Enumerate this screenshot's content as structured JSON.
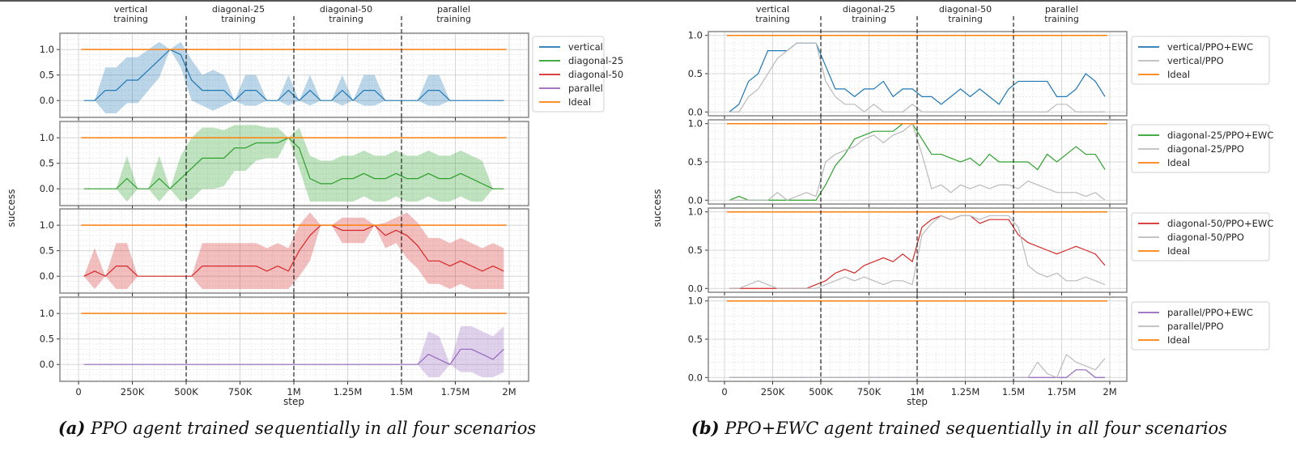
{
  "captions": {
    "a_tag": "(a)",
    "a_text": "PPO agent trained sequentially in all four scenarios",
    "b_tag": "(b)",
    "b_text": "PPO+EWC agent trained sequentially in all four scenarios"
  },
  "chart_data": [
    {
      "type": "line",
      "id": "a",
      "ylabel": "success",
      "xlabel": "step",
      "xlim": [
        -50000,
        2050000
      ],
      "ylim": [
        -0.33,
        1.32
      ],
      "xticks": [
        0,
        250000,
        500000,
        750000,
        1000000,
        1250000,
        1500000,
        1750000,
        2000000
      ],
      "xtick_labels": [
        "0",
        "250K",
        "500K",
        "750K",
        "1M",
        "1.25M",
        "1.5M",
        "1.75M",
        "2M"
      ],
      "yticks": [
        0.0,
        0.5,
        1.0
      ],
      "ytick_labels": [
        "0.0",
        "0.5",
        "1.0"
      ],
      "grid": true,
      "phase_boundaries": [
        500000,
        1000000,
        1500000
      ],
      "phase_labels": [
        [
          "vertical",
          "training"
        ],
        [
          "diagonal-25",
          "training"
        ],
        [
          "diagonal-50",
          "training"
        ],
        [
          "parallel",
          "training"
        ]
      ],
      "x_start": 25000,
      "x_step": 50000,
      "ideal": {
        "name": "Ideal",
        "value": 1.0,
        "color": "#ff7f0e"
      },
      "legend": {
        "placement": "right of top panel",
        "entries": [
          "vertical",
          "diagonal-25",
          "diagonal-50",
          "parallel",
          "Ideal"
        ]
      },
      "panels": [
        {
          "series": [
            {
              "name": "vertical",
              "color": "#1f77b4",
              "band": true,
              "values": [
                0,
                0,
                0.2,
                0.2,
                0.4,
                0.4,
                0.6,
                0.8,
                1.0,
                0.9,
                0.4,
                0.2,
                0.2,
                0.2,
                0,
                0.2,
                0.2,
                0,
                0,
                0.2,
                0,
                0.2,
                0,
                0,
                0.2,
                0,
                0.2,
                0.2,
                0,
                0,
                0,
                0,
                0.2,
                0.2,
                0,
                0,
                0,
                0,
                0,
                0
              ],
              "std": [
                0,
                0,
                0.45,
                0.45,
                0.45,
                0.45,
                0.4,
                0.35,
                0,
                0.25,
                0.4,
                0.3,
                0.4,
                0.3,
                0,
                0.3,
                0.3,
                0,
                0,
                0.3,
                0,
                0.3,
                0,
                0,
                0.3,
                0,
                0.3,
                0.3,
                0,
                0,
                0,
                0,
                0.3,
                0.3,
                0,
                0,
                0,
                0,
                0,
                0
              ]
            }
          ]
        },
        {
          "series": [
            {
              "name": "diagonal-25",
              "color": "#2ca02c",
              "band": true,
              "values": [
                0,
                0,
                0,
                0,
                0.2,
                0,
                0,
                0.2,
                0,
                0.2,
                0.4,
                0.6,
                0.6,
                0.6,
                0.8,
                0.8,
                0.9,
                0.9,
                0.9,
                1.0,
                0.8,
                0.2,
                0.1,
                0.1,
                0.2,
                0.2,
                0.3,
                0.2,
                0.2,
                0.3,
                0.2,
                0.2,
                0.3,
                0.2,
                0.2,
                0.3,
                0.2,
                0.1,
                0,
                0
              ],
              "std": [
                0,
                0,
                0,
                0,
                0.45,
                0,
                0,
                0.45,
                0,
                0.45,
                0.6,
                0.6,
                0.6,
                0.55,
                0.45,
                0.45,
                0.35,
                0.3,
                0.3,
                0,
                0.4,
                0.45,
                0.45,
                0.45,
                0.45,
                0.45,
                0.45,
                0.45,
                0.45,
                0.45,
                0.45,
                0.45,
                0.45,
                0.45,
                0.45,
                0.45,
                0.45,
                0.45,
                0,
                0
              ]
            }
          ]
        },
        {
          "series": [
            {
              "name": "diagonal-50",
              "color": "#d62728",
              "band": true,
              "values": [
                0,
                0.1,
                0,
                0.2,
                0.2,
                0,
                0,
                0,
                0,
                0,
                0,
                0.2,
                0.2,
                0.2,
                0.2,
                0.2,
                0.2,
                0.1,
                0.2,
                0.1,
                0.5,
                0.8,
                1.0,
                1.0,
                0.9,
                0.9,
                0.9,
                1.0,
                0.8,
                0.9,
                0.8,
                0.6,
                0.3,
                0.3,
                0.2,
                0.3,
                0.2,
                0.1,
                0.2,
                0.1
              ],
              "std": [
                0,
                0.45,
                0,
                0.45,
                0.45,
                0,
                0,
                0,
                0,
                0,
                0,
                0.45,
                0.45,
                0.45,
                0.45,
                0.45,
                0.45,
                0.45,
                0.45,
                0.45,
                0.5,
                0.5,
                0,
                0,
                0.25,
                0.25,
                0.25,
                0,
                0.25,
                0.25,
                0.45,
                0.45,
                0.45,
                0.45,
                0.45,
                0.45,
                0.45,
                0.45,
                0.45,
                0.45
              ]
            }
          ]
        },
        {
          "series": [
            {
              "name": "parallel",
              "color": "#9467bd",
              "band": true,
              "values": [
                0,
                0,
                0,
                0,
                0,
                0,
                0,
                0,
                0,
                0,
                0,
                0,
                0,
                0,
                0,
                0,
                0,
                0,
                0,
                0,
                0,
                0,
                0,
                0,
                0,
                0,
                0,
                0,
                0,
                0,
                0,
                0,
                0.2,
                0.1,
                0,
                0.3,
                0.3,
                0.2,
                0.1,
                0.3
              ],
              "std": [
                0,
                0,
                0,
                0,
                0,
                0,
                0,
                0,
                0,
                0,
                0,
                0,
                0,
                0,
                0,
                0,
                0,
                0,
                0,
                0,
                0,
                0,
                0,
                0,
                0,
                0,
                0,
                0,
                0,
                0,
                0,
                0,
                0.45,
                0.45,
                0,
                0.45,
                0.45,
                0.45,
                0.45,
                0.45
              ]
            }
          ]
        }
      ]
    },
    {
      "type": "line",
      "id": "b",
      "ylabel": "success",
      "xlabel": "step",
      "xlim": [
        -80000,
        2080000
      ],
      "ylim": [
        -0.05,
        1.05
      ],
      "xticks": [
        0,
        250000,
        500000,
        750000,
        1000000,
        1250000,
        1500000,
        1750000,
        2000000
      ],
      "xtick_labels": [
        "0",
        "250K",
        "500K",
        "750K",
        "1M",
        "1.25M",
        "1.5M",
        "1.75M",
        "2M"
      ],
      "yticks": [
        0.0,
        0.5,
        1.0
      ],
      "ytick_labels": [
        "0.0",
        "0.5",
        "1.0"
      ],
      "grid": true,
      "phase_boundaries": [
        500000,
        1000000,
        1500000
      ],
      "phase_labels": [
        [
          "vertical",
          "training"
        ],
        [
          "diagonal-25",
          "training"
        ],
        [
          "diagonal-50",
          "training"
        ],
        [
          "parallel",
          "training"
        ]
      ],
      "x_start": 25000,
      "x_step": 50000,
      "ideal": {
        "name": "Ideal",
        "value": 1.0,
        "color": "#ff7f0e"
      },
      "panels": [
        {
          "legend": [
            "vertical/PPO+EWC",
            "vertical/PPO",
            "Ideal"
          ],
          "series": [
            {
              "name": "vertical/PPO+EWC",
              "color": "#1f77b4",
              "values": [
                0,
                0.1,
                0.4,
                0.5,
                0.8,
                0.8,
                0.8,
                0.9,
                0.9,
                0.9,
                0.6,
                0.3,
                0.3,
                0.2,
                0.3,
                0.3,
                0.4,
                0.2,
                0.3,
                0.3,
                0.2,
                0.2,
                0.1,
                0.2,
                0.3,
                0.2,
                0.3,
                0.2,
                0.1,
                0.3,
                0.4,
                0.4,
                0.4,
                0.4,
                0.2,
                0.2,
                0.3,
                0.5,
                0.4,
                0.2
              ]
            },
            {
              "name": "vertical/PPO",
              "color": "#bbbbbb",
              "values": [
                0,
                0,
                0.2,
                0.3,
                0.5,
                0.7,
                0.8,
                0.9,
                0.9,
                0.9,
                0.4,
                0.2,
                0.1,
                0.1,
                0,
                0.1,
                0,
                0,
                0,
                0.1,
                0,
                0,
                0,
                0,
                0,
                0,
                0,
                0,
                0,
                0,
                0,
                0,
                0,
                0,
                0.1,
                0.1,
                0,
                0,
                0,
                0
              ]
            }
          ]
        },
        {
          "legend": [
            "diagonal-25/PPO+EWC",
            "diagonal-25/PPO",
            "Ideal"
          ],
          "series": [
            {
              "name": "diagonal-25/PPO+EWC",
              "color": "#2ca02c",
              "values": [
                0,
                0.05,
                0,
                0,
                0,
                0,
                0,
                0,
                0,
                0,
                0.2,
                0.45,
                0.6,
                0.8,
                0.85,
                0.9,
                0.9,
                0.9,
                1.0,
                1.0,
                0.8,
                0.6,
                0.6,
                0.55,
                0.5,
                0.55,
                0.45,
                0.6,
                0.5,
                0.5,
                0.5,
                0.5,
                0.4,
                0.6,
                0.5,
                0.6,
                0.7,
                0.6,
                0.6,
                0.4
              ]
            },
            {
              "name": "diagonal-25/PPO",
              "color": "#bbbbbb",
              "values": [
                0,
                0,
                0,
                0,
                0,
                0.1,
                0,
                0.05,
                0.1,
                0.05,
                0.5,
                0.6,
                0.65,
                0.7,
                0.8,
                0.85,
                0.75,
                0.85,
                0.9,
                1.0,
                0.6,
                0.15,
                0.2,
                0.1,
                0.2,
                0.15,
                0.2,
                0.15,
                0.2,
                0.2,
                0.15,
                0.25,
                0.2,
                0.15,
                0.1,
                0.1,
                0.1,
                0.05,
                0.1,
                0
              ]
            }
          ]
        },
        {
          "legend": [
            "diagonal-50/PPO+EWC",
            "diagonal-50/PPO",
            "Ideal"
          ],
          "series": [
            {
              "name": "diagonal-50/PPO+EWC",
              "color": "#d62728",
              "values": [
                0,
                0,
                0,
                0,
                0,
                0,
                0,
                0,
                0,
                0.05,
                0.1,
                0.2,
                0.25,
                0.2,
                0.3,
                0.35,
                0.4,
                0.35,
                0.45,
                0.35,
                0.8,
                0.9,
                0.95,
                0.9,
                0.95,
                0.95,
                0.85,
                0.9,
                0.9,
                0.9,
                0.7,
                0.6,
                0.55,
                0.5,
                0.45,
                0.5,
                0.55,
                0.5,
                0.45,
                0.3
              ]
            },
            {
              "name": "diagonal-50/PPO",
              "color": "#bbbbbb",
              "values": [
                0,
                0,
                0.05,
                0.1,
                0.05,
                0,
                0,
                0,
                0,
                0,
                0.05,
                0.1,
                0.15,
                0.1,
                0.15,
                0.1,
                0.05,
                0.1,
                0.1,
                0.05,
                0.7,
                0.85,
                0.95,
                0.9,
                0.95,
                0.95,
                0.9,
                0.95,
                0.95,
                0.95,
                0.8,
                0.3,
                0.2,
                0.15,
                0.2,
                0.1,
                0.1,
                0.15,
                0.1,
                0.05
              ]
            }
          ]
        },
        {
          "legend": [
            "parallel/PPO+EWC",
            "parallel/PPO",
            "Ideal"
          ],
          "series": [
            {
              "name": "parallel/PPO+EWC",
              "color": "#9467bd",
              "values": [
                0,
                0,
                0,
                0,
                0,
                0,
                0,
                0,
                0,
                0,
                0,
                0,
                0,
                0,
                0,
                0,
                0,
                0,
                0,
                0,
                0,
                0,
                0,
                0,
                0,
                0,
                0,
                0,
                0,
                0,
                0,
                0,
                0,
                0,
                0,
                0,
                0.1,
                0.1,
                0,
                0
              ]
            },
            {
              "name": "parallel/PPO",
              "color": "#bbbbbb",
              "values": [
                0,
                0,
                0,
                0,
                0,
                0,
                0,
                0,
                0,
                0,
                0,
                0,
                0,
                0,
                0,
                0,
                0,
                0,
                0,
                0,
                0,
                0,
                0,
                0,
                0,
                0,
                0,
                0,
                0,
                0,
                0,
                0,
                0.2,
                0.05,
                0,
                0.3,
                0.2,
                0.15,
                0.1,
                0.25
              ]
            }
          ]
        }
      ]
    }
  ]
}
